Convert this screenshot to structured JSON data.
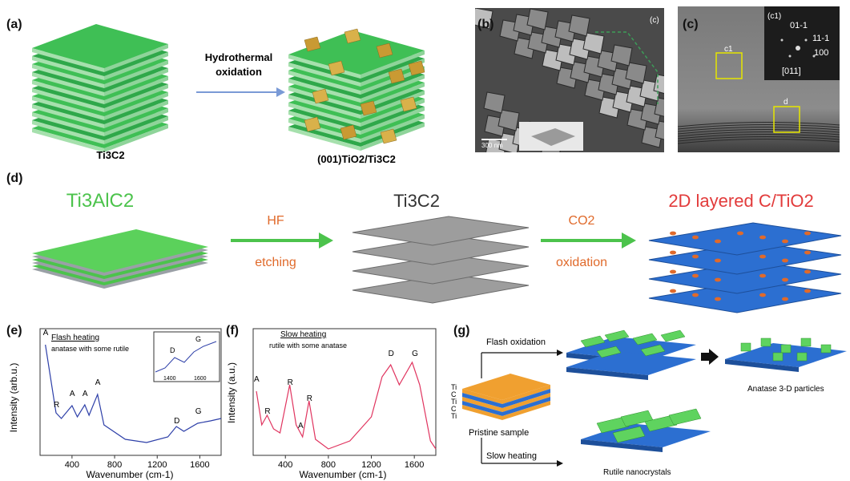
{
  "panel_a": {
    "label": "(a)",
    "arrow_text_1": "Hydrothermal",
    "arrow_text_2": "oxidation",
    "left_caption": "Ti3C2",
    "right_caption": "(001)TiO2/Ti3C2"
  },
  "panel_b": {
    "label": "(b)",
    "corner_label": "(c)",
    "scale": "300 nm",
    "colors": {
      "dark": "#2a2a2a",
      "light": "#bdbdbd"
    }
  },
  "panel_c": {
    "label": "(c)",
    "inset_label": "(c1)",
    "fft_labels": [
      "01-1",
      "11-1",
      "100",
      "[011]"
    ],
    "box_c1": "c1",
    "box_d": "d"
  },
  "panel_d": {
    "label": "(d)",
    "left_title": "Ti3AlC2",
    "step1_top": "HF",
    "step1_bottom": "etching",
    "middle_title": "Ti3C2",
    "step2_top": "CO2",
    "step2_bottom": "oxidation",
    "right_title": "2D layered C/TiO2",
    "colors": {
      "green": "#4cc34c",
      "orange": "#e06a2b",
      "red": "#e23b3b",
      "blue": "#2c6fd1"
    }
  },
  "panel_e": {
    "label": "(e)",
    "title": "Flash heating",
    "subtitle": "anatase with some rutile",
    "ylabel": "Intensity (arb.u.)",
    "xlabel": "Wavenumber (cm-1)",
    "xticks": [
      "400",
      "800",
      "1200",
      "1600"
    ],
    "peak_labels": [
      "A",
      "R",
      "A",
      "A",
      "A",
      "D",
      "G"
    ],
    "inset_labels": [
      "D",
      "G"
    ],
    "inset_ticks": [
      "1400",
      "1600"
    ]
  },
  "panel_f": {
    "label": "(f)",
    "title": "Slow heating",
    "subtitle": "rutile with some anatase",
    "ylabel": "Intensity (a.u.)",
    "xlabel": "Wavenumber (cm-1)",
    "xticks": [
      "400",
      "800",
      "1200",
      "1600"
    ],
    "peak_labels": [
      "A",
      "R",
      "R",
      "R",
      "A",
      "D",
      "G"
    ]
  },
  "panel_g": {
    "label": "(g)",
    "flash": "Flash oxidation",
    "slow": "Slow heating",
    "pristine": "Pristine sample",
    "anatase": "Anatase 3-D particles",
    "rutile": "Rutile nanocrystals",
    "layers": [
      "Ti",
      "C",
      "Ti",
      "C",
      "Ti"
    ]
  }
}
